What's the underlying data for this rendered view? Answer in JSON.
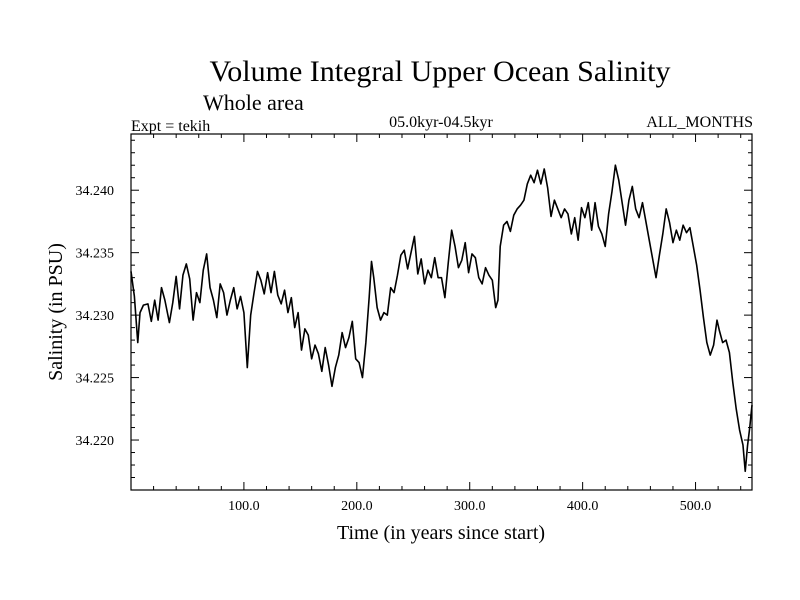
{
  "chart_data": {
    "type": "line",
    "title": "Volume Integral Upper Ocean Salinity",
    "subtitle": "Whole area",
    "experiment": "Expt = tekih",
    "period": "05.0kyr-04.5kyr",
    "months": "ALL_MONTHS",
    "xlabel": "Time (in years since start)",
    "ylabel": "Salinity (in PSU)",
    "xlim": [
      0,
      550
    ],
    "ylim": [
      34.216,
      34.2445
    ],
    "x_ticks": [
      100,
      200,
      300,
      400,
      500
    ],
    "x_tick_labels": [
      "100.0",
      "200.0",
      "300.0",
      "400.0",
      "500.0"
    ],
    "y_ticks": [
      34.22,
      34.225,
      34.23,
      34.235,
      34.24
    ],
    "y_tick_labels": [
      "34.220",
      "34.225",
      "34.230",
      "34.235",
      "34.240"
    ],
    "series": [
      {
        "name": "Salinity",
        "color": "#000000",
        "points": [
          [
            0,
            34.2335
          ],
          [
            3,
            34.2315
          ],
          [
            6,
            34.2278
          ],
          [
            8,
            34.2302
          ],
          [
            11,
            34.2308
          ],
          [
            15,
            34.2309
          ],
          [
            18,
            34.2295
          ],
          [
            21,
            34.2312
          ],
          [
            24,
            34.2296
          ],
          [
            27,
            34.2322
          ],
          [
            30,
            34.2312
          ],
          [
            34,
            34.2294
          ],
          [
            37,
            34.231
          ],
          [
            40,
            34.2331
          ],
          [
            43,
            34.2305
          ],
          [
            46,
            34.2332
          ],
          [
            49,
            34.2341
          ],
          [
            52,
            34.2329
          ],
          [
            55,
            34.2296
          ],
          [
            58,
            34.2318
          ],
          [
            61,
            34.231
          ],
          [
            64,
            34.2336
          ],
          [
            67,
            34.2349
          ],
          [
            70,
            34.2322
          ],
          [
            73,
            34.2312
          ],
          [
            76,
            34.2298
          ],
          [
            79,
            34.2325
          ],
          [
            82,
            34.2318
          ],
          [
            85,
            34.23
          ],
          [
            88,
            34.2312
          ],
          [
            91,
            34.2322
          ],
          [
            94,
            34.2305
          ],
          [
            97,
            34.2315
          ],
          [
            100,
            34.2302
          ],
          [
            103,
            34.2258
          ],
          [
            106,
            34.23
          ],
          [
            109,
            34.2318
          ],
          [
            112,
            34.2335
          ],
          [
            115,
            34.2328
          ],
          [
            118,
            34.2317
          ],
          [
            121,
            34.2334
          ],
          [
            124,
            34.2318
          ],
          [
            127,
            34.2335
          ],
          [
            130,
            34.2316
          ],
          [
            133,
            34.2309
          ],
          [
            136,
            34.232
          ],
          [
            139,
            34.2302
          ],
          [
            142,
            34.2314
          ],
          [
            145,
            34.229
          ],
          [
            148,
            34.2302
          ],
          [
            151,
            34.2272
          ],
          [
            154,
            34.2289
          ],
          [
            157,
            34.2284
          ],
          [
            160,
            34.2265
          ],
          [
            163,
            34.2276
          ],
          [
            166,
            34.2269
          ],
          [
            169,
            34.2255
          ],
          [
            172,
            34.2274
          ],
          [
            175,
            34.226
          ],
          [
            178,
            34.2243
          ],
          [
            181,
            34.2258
          ],
          [
            184,
            34.2268
          ],
          [
            187,
            34.2286
          ],
          [
            190,
            34.2274
          ],
          [
            193,
            34.2282
          ],
          [
            196,
            34.2295
          ],
          [
            199,
            34.2265
          ],
          [
            202,
            34.2262
          ],
          [
            205,
            34.225
          ],
          [
            208,
            34.2278
          ],
          [
            211,
            34.2315
          ],
          [
            213,
            34.2343
          ],
          [
            215,
            34.233
          ],
          [
            218,
            34.2306
          ],
          [
            221,
            34.2296
          ],
          [
            224,
            34.2302
          ],
          [
            227,
            34.23
          ],
          [
            230,
            34.2322
          ],
          [
            233,
            34.2318
          ],
          [
            236,
            34.2332
          ],
          [
            239,
            34.2348
          ],
          [
            242,
            34.2352
          ],
          [
            245,
            34.2337
          ],
          [
            248,
            34.235
          ],
          [
            251,
            34.2363
          ],
          [
            254,
            34.2333
          ],
          [
            257,
            34.2345
          ],
          [
            260,
            34.2325
          ],
          [
            263,
            34.2336
          ],
          [
            266,
            34.233
          ],
          [
            269,
            34.2346
          ],
          [
            272,
            34.233
          ],
          [
            275,
            34.233
          ],
          [
            278,
            34.2314
          ],
          [
            281,
            34.2342
          ],
          [
            284,
            34.2368
          ],
          [
            287,
            34.2355
          ],
          [
            290,
            34.2338
          ],
          [
            293,
            34.2344
          ],
          [
            296,
            34.2358
          ],
          [
            299,
            34.2334
          ],
          [
            302,
            34.2349
          ],
          [
            305,
            34.2346
          ],
          [
            308,
            34.233
          ],
          [
            311,
            34.2325
          ],
          [
            314,
            34.2338
          ],
          [
            317,
            34.2332
          ],
          [
            320,
            34.2328
          ],
          [
            323,
            34.2306
          ],
          [
            325,
            34.2312
          ],
          [
            327,
            34.2355
          ],
          [
            330,
            34.2372
          ],
          [
            333,
            34.2375
          ],
          [
            336,
            34.2367
          ],
          [
            339,
            34.238
          ],
          [
            342,
            34.2385
          ],
          [
            345,
            34.2388
          ],
          [
            348,
            34.2392
          ],
          [
            351,
            34.2405
          ],
          [
            354,
            34.2412
          ],
          [
            357,
            34.2406
          ],
          [
            360,
            34.2416
          ],
          [
            363,
            34.2405
          ],
          [
            366,
            34.2417
          ],
          [
            369,
            34.2402
          ],
          [
            372,
            34.2379
          ],
          [
            375,
            34.2392
          ],
          [
            378,
            34.2385
          ],
          [
            381,
            34.2378
          ],
          [
            384,
            34.2385
          ],
          [
            387,
            34.2381
          ],
          [
            390,
            34.2365
          ],
          [
            393,
            34.2378
          ],
          [
            396,
            34.236
          ],
          [
            399,
            34.2386
          ],
          [
            402,
            34.2378
          ],
          [
            405,
            34.239
          ],
          [
            408,
            34.2368
          ],
          [
            411,
            34.239
          ],
          [
            414,
            34.2371
          ],
          [
            417,
            34.2365
          ],
          [
            420,
            34.2355
          ],
          [
            423,
            34.2381
          ],
          [
            426,
            34.2399
          ],
          [
            429,
            34.242
          ],
          [
            432,
            34.2408
          ],
          [
            435,
            34.239
          ],
          [
            438,
            34.2372
          ],
          [
            441,
            34.2392
          ],
          [
            444,
            34.2403
          ],
          [
            447,
            34.2385
          ],
          [
            450,
            34.2378
          ],
          [
            453,
            34.239
          ],
          [
            456,
            34.2375
          ],
          [
            459,
            34.236
          ],
          [
            462,
            34.2345
          ],
          [
            465,
            34.233
          ],
          [
            468,
            34.2348
          ],
          [
            471,
            34.2365
          ],
          [
            474,
            34.2385
          ],
          [
            477,
            34.2374
          ],
          [
            480,
            34.2358
          ],
          [
            483,
            34.2368
          ],
          [
            486,
            34.236
          ],
          [
            489,
            34.2372
          ],
          [
            492,
            34.2366
          ],
          [
            495,
            34.237
          ],
          [
            498,
            34.2355
          ],
          [
            501,
            34.234
          ],
          [
            504,
            34.232
          ],
          [
            507,
            34.2298
          ],
          [
            510,
            34.2278
          ],
          [
            513,
            34.2268
          ],
          [
            516,
            34.2276
          ],
          [
            519,
            34.2296
          ],
          [
            521,
            34.2288
          ],
          [
            524,
            34.2278
          ],
          [
            527,
            34.228
          ],
          [
            530,
            34.227
          ],
          [
            533,
            34.2246
          ],
          [
            536,
            34.2225
          ],
          [
            539,
            34.2208
          ],
          [
            542,
            34.2196
          ],
          [
            544,
            34.2175
          ],
          [
            546,
            34.2195
          ],
          [
            548,
            34.221
          ],
          [
            550,
            34.2228
          ]
        ]
      }
    ]
  }
}
